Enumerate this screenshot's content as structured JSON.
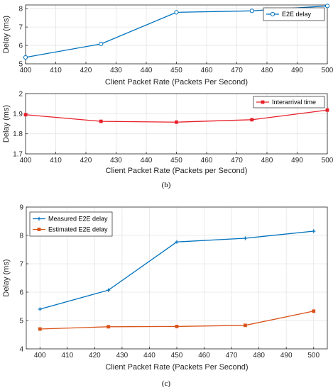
{
  "chart_data": [
    {
      "type": "line",
      "id": "top",
      "title": "",
      "xlabel": "Client Packet Rate (Packets Per Second)",
      "ylabel": "Delay (ms)",
      "xlim": [
        400,
        500
      ],
      "ylim": [
        5,
        8.2
      ],
      "xticks": [
        400,
        410,
        420,
        430,
        440,
        450,
        460,
        470,
        480,
        490,
        500
      ],
      "yticks": [
        5,
        6,
        7,
        8
      ],
      "grid": true,
      "legend_position": "top-right",
      "series": [
        {
          "name": "E2E delay",
          "color": "#0072BD",
          "marker": "circle",
          "x": [
            400,
            425,
            450,
            475,
            500
          ],
          "y": [
            5.35,
            6.08,
            7.8,
            7.88,
            8.15
          ]
        }
      ]
    },
    {
      "type": "line",
      "id": "b",
      "title": "",
      "xlabel": "Client Packet Rate (Packets per Second)",
      "ylabel": "Delay (ms)",
      "xlim": [
        400,
        500
      ],
      "ylim": [
        1.7,
        2.0
      ],
      "xticks": [
        400,
        410,
        420,
        430,
        440,
        450,
        460,
        470,
        480,
        490,
        500
      ],
      "yticks": [
        1.7,
        1.8,
        1.9,
        2
      ],
      "grid": true,
      "legend_position": "top-right",
      "series": [
        {
          "name": "Interarrival time",
          "color": "#E8202A",
          "marker": "square",
          "x": [
            400,
            425,
            450,
            475,
            500
          ],
          "y": [
            1.895,
            1.862,
            1.858,
            1.87,
            1.918
          ]
        }
      ]
    },
    {
      "type": "line",
      "id": "c",
      "title": "",
      "xlabel": "Client Packet Rate (Packets Per Second)",
      "ylabel": "Delay (ms)",
      "xlim": [
        395,
        505
      ],
      "ylim": [
        4,
        9
      ],
      "xticks": [
        400,
        410,
        420,
        430,
        440,
        450,
        460,
        470,
        480,
        490,
        500
      ],
      "yticks": [
        4,
        5,
        6,
        7,
        8,
        9
      ],
      "grid": true,
      "legend_position": "top-left",
      "series": [
        {
          "name": "Measured E2E delay",
          "color": "#0072BD",
          "marker": "plus",
          "x": [
            400,
            425,
            450,
            475,
            500
          ],
          "y": [
            5.4,
            6.07,
            7.77,
            7.9,
            8.15
          ]
        },
        {
          "name": "Estimated E2E delay",
          "color": "#D95319",
          "marker": "square",
          "x": [
            400,
            425,
            450,
            475,
            500
          ],
          "y": [
            4.7,
            4.78,
            4.79,
            4.83,
            5.33
          ]
        }
      ]
    }
  ],
  "captions": {
    "b": "(b)",
    "c": "(c)"
  }
}
